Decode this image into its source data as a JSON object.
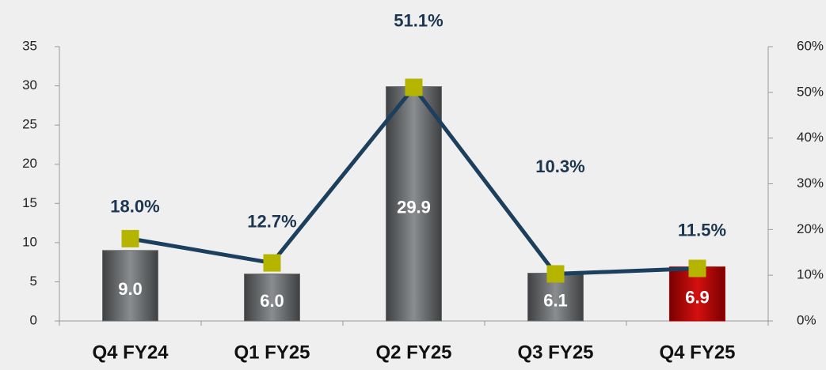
{
  "chart_data": {
    "type": "bar",
    "categories": [
      "Q4 FY24",
      "Q1 FY25",
      "Q2 FY25",
      "Q3 FY25",
      "Q4 FY25"
    ],
    "series": [
      {
        "type": "bar",
        "values": [
          9.0,
          6.0,
          29.9,
          6.1,
          6.9
        ],
        "value_labels": [
          "9.0",
          "6.0",
          "29.9",
          "6.1",
          "6.9"
        ],
        "colors": [
          "#6b6e70",
          "#6b6e70",
          "#6b6e70",
          "#6b6e70",
          "#c00000"
        ]
      },
      {
        "type": "line",
        "axis": "y2",
        "color": "#1c3f5e",
        "marker_color": "#b5b500",
        "values": [
          18.0,
          12.7,
          51.1,
          10.3,
          11.5
        ],
        "value_labels": [
          "18.0%",
          "12.7%",
          "51.1%",
          "10.3%",
          "11.5%"
        ]
      }
    ],
    "ylim": [
      0,
      35
    ],
    "yticks": [
      0,
      5,
      10,
      15,
      20,
      25,
      30,
      35
    ],
    "y2lim": [
      0,
      60
    ],
    "y2ticks": [
      {
        "value": 0,
        "label": "0%"
      },
      {
        "value": 10,
        "label": "10%"
      },
      {
        "value": 20,
        "label": "20%"
      },
      {
        "value": 30,
        "label": "30%"
      },
      {
        "value": 40,
        "label": "40%"
      },
      {
        "value": 50,
        "label": "50%"
      },
      {
        "value": 60,
        "label": "60%"
      }
    ]
  }
}
